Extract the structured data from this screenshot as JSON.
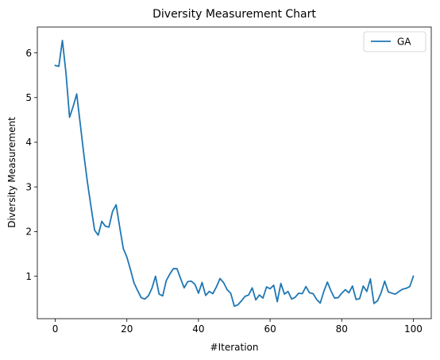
{
  "chart_data": {
    "type": "line",
    "title": "Diversity Measurement Chart",
    "xlabel": "#Iteration",
    "ylabel": "Diversity Measurement",
    "xlim": [
      -5,
      105
    ],
    "ylim": [
      0.05,
      6.58
    ],
    "xticks": [
      0,
      20,
      40,
      60,
      80,
      100
    ],
    "yticks": [
      1,
      2,
      3,
      4,
      5,
      6
    ],
    "grid": false,
    "legend_position": "upper-right",
    "series": [
      {
        "name": "GA",
        "color": "#1f77b4",
        "x": [
          0,
          1,
          2,
          3,
          4,
          5,
          6,
          7,
          8,
          9,
          10,
          11,
          12,
          13,
          14,
          15,
          16,
          17,
          18,
          19,
          20,
          21,
          22,
          23,
          24,
          25,
          26,
          27,
          28,
          29,
          30,
          31,
          32,
          33,
          34,
          35,
          36,
          37,
          38,
          39,
          40,
          41,
          42,
          43,
          44,
          45,
          46,
          47,
          48,
          49,
          50,
          51,
          52,
          53,
          54,
          55,
          56,
          57,
          58,
          59,
          60,
          61,
          62,
          63,
          64,
          65,
          66,
          67,
          68,
          69,
          70,
          71,
          72,
          73,
          74,
          75,
          76,
          77,
          78,
          79,
          80,
          81,
          82,
          83,
          84,
          85,
          86,
          87,
          88,
          89,
          90,
          91,
          92,
          93,
          94,
          95,
          96,
          97,
          98,
          99,
          100
        ],
        "y": [
          5.72,
          5.7,
          6.28,
          5.55,
          4.56,
          4.8,
          5.08,
          4.4,
          3.72,
          3.1,
          2.55,
          2.03,
          1.92,
          2.23,
          2.12,
          2.1,
          2.45,
          2.6,
          2.1,
          1.62,
          1.43,
          1.15,
          0.85,
          0.68,
          0.52,
          0.49,
          0.56,
          0.73,
          1.0,
          0.6,
          0.56,
          0.9,
          1.05,
          1.17,
          1.17,
          0.95,
          0.74,
          0.88,
          0.89,
          0.82,
          0.62,
          0.86,
          0.57,
          0.66,
          0.61,
          0.76,
          0.95,
          0.86,
          0.7,
          0.62,
          0.33,
          0.36,
          0.45,
          0.55,
          0.58,
          0.74,
          0.47,
          0.58,
          0.51,
          0.76,
          0.72,
          0.8,
          0.43,
          0.84,
          0.6,
          0.66,
          0.49,
          0.53,
          0.62,
          0.61,
          0.77,
          0.63,
          0.61,
          0.48,
          0.4,
          0.66,
          0.87,
          0.67,
          0.51,
          0.52,
          0.62,
          0.7,
          0.63,
          0.78,
          0.48,
          0.5,
          0.78,
          0.66,
          0.94,
          0.39,
          0.45,
          0.63,
          0.89,
          0.65,
          0.62,
          0.6,
          0.66,
          0.71,
          0.73,
          0.77,
          1.0
        ]
      }
    ]
  }
}
